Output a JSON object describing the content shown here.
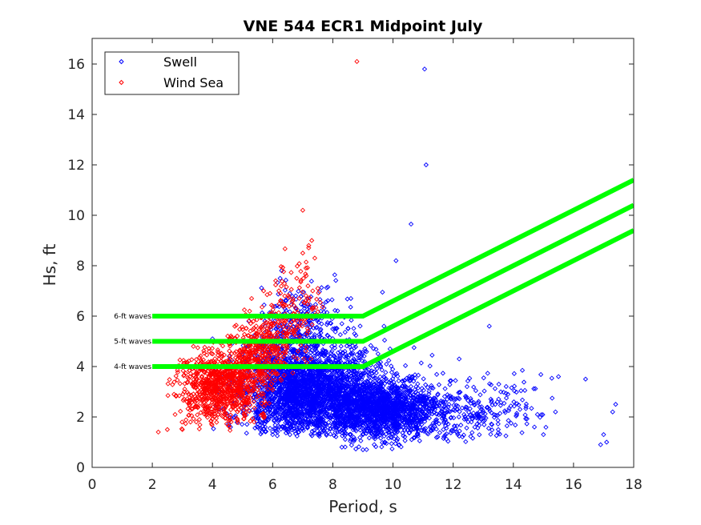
{
  "chart_data": {
    "type": "scatter",
    "title": "VNE 544 ECR1 Midpoint July",
    "xlabel": "Period, s",
    "ylabel": "Hs, ft",
    "xlim": [
      0,
      18
    ],
    "ylim": [
      0,
      17
    ],
    "xticks": [
      0,
      2,
      4,
      6,
      8,
      10,
      12,
      14,
      16,
      18
    ],
    "yticks": [
      0,
      2,
      4,
      6,
      8,
      10,
      12,
      14,
      16
    ],
    "grid": false,
    "legend": {
      "placement": "top-left",
      "entries": [
        "Swell",
        "Wind Sea"
      ]
    },
    "colors": {
      "swell": "#0000ff",
      "wind_sea": "#ff0000",
      "threshold": "#00ff00",
      "axis": "#262626"
    },
    "series": [
      {
        "name": "Swell",
        "marker": "diamond-open",
        "color": "#0000ff",
        "clusters": [
          {
            "n": 2600,
            "x_mean": 7.2,
            "x_sd": 1.1,
            "y_mean": 3.0,
            "y_sd": 0.9,
            "x_min": 4.0,
            "x_max": 10.0,
            "y_min": 1.2,
            "y_max": 6.5
          },
          {
            "n": 1400,
            "x_mean": 9.6,
            "x_sd": 0.9,
            "y_mean": 2.3,
            "y_sd": 0.6,
            "x_min": 8.0,
            "x_max": 11.5,
            "y_min": 0.7,
            "y_max": 4.5
          },
          {
            "n": 350,
            "x_mean": 12.0,
            "x_sd": 1.4,
            "y_mean": 2.2,
            "y_sd": 0.6,
            "x_min": 10.5,
            "x_max": 15.5,
            "y_min": 1.0,
            "y_max": 4.0
          },
          {
            "n": 250,
            "x_mean": 6.8,
            "x_sd": 0.8,
            "y_mean": 5.6,
            "y_sd": 0.9,
            "x_min": 5.5,
            "x_max": 9.0,
            "y_min": 4.5,
            "y_max": 8.0
          }
        ],
        "outliers": [
          [
            11.05,
            15.8
          ],
          [
            11.1,
            12.0
          ],
          [
            10.6,
            9.65
          ],
          [
            10.1,
            8.2
          ],
          [
            9.65,
            6.95
          ],
          [
            8.6,
            6.7
          ],
          [
            9.7,
            5.6
          ],
          [
            13.2,
            5.6
          ],
          [
            10.7,
            4.75
          ],
          [
            11.3,
            4.45
          ],
          [
            12.2,
            4.3
          ],
          [
            14.3,
            3.85
          ],
          [
            15.5,
            3.6
          ],
          [
            16.4,
            3.5
          ],
          [
            17.4,
            2.5
          ],
          [
            17.3,
            2.2
          ],
          [
            17.1,
            1.0
          ],
          [
            16.9,
            0.9
          ],
          [
            17.0,
            1.3
          ],
          [
            14.8,
            2.1
          ],
          [
            14.7,
            1.6
          ],
          [
            15.4,
            2.2
          ],
          [
            15.0,
            1.3
          ],
          [
            13.5,
            1.5
          ],
          [
            8.3,
            0.8
          ],
          [
            9.0,
            0.7
          ],
          [
            6.0,
            1.3
          ],
          [
            4.6,
            1.6
          ],
          [
            4.2,
            2.3
          ],
          [
            4.0,
            5.1
          ]
        ]
      },
      {
        "name": "Wind Sea",
        "marker": "diamond-open",
        "color": "#ff0000",
        "clusters": [
          {
            "n": 900,
            "x_mean": 4.3,
            "x_sd": 0.7,
            "y_mean": 3.2,
            "y_sd": 0.7,
            "x_min": 2.5,
            "x_max": 6.0,
            "y_min": 1.4,
            "y_max": 5.0
          },
          {
            "n": 350,
            "x_mean": 5.6,
            "x_sd": 0.6,
            "y_mean": 4.6,
            "y_sd": 0.7,
            "x_min": 4.5,
            "x_max": 6.5,
            "y_min": 3.0,
            "y_max": 6.5
          },
          {
            "n": 150,
            "x_mean": 6.6,
            "x_sd": 0.6,
            "y_mean": 6.0,
            "y_sd": 1.0,
            "x_min": 5.8,
            "x_max": 7.7,
            "y_min": 3.5,
            "y_max": 9.0
          }
        ],
        "outliers": [
          [
            8.8,
            16.1
          ],
          [
            7.0,
            10.2
          ],
          [
            7.3,
            9.0
          ],
          [
            7.2,
            8.8
          ],
          [
            7.0,
            8.5
          ],
          [
            7.4,
            8.3
          ],
          [
            7.5,
            7.1
          ],
          [
            6.8,
            7.5
          ],
          [
            8.0,
            6.0
          ],
          [
            2.2,
            1.4
          ],
          [
            2.5,
            1.5
          ],
          [
            3.0,
            1.5
          ],
          [
            6.1,
            7.4
          ],
          [
            6.4,
            6.8
          ],
          [
            5.7,
            7.0
          ],
          [
            5.3,
            6.7
          ]
        ]
      }
    ],
    "threshold_lines": [
      {
        "label": "6-ft waves",
        "points": [
          [
            2,
            6
          ],
          [
            9,
            6
          ],
          [
            18,
            11.4
          ]
        ]
      },
      {
        "label": "5-ft waves",
        "points": [
          [
            2,
            5
          ],
          [
            9,
            5
          ],
          [
            18,
            10.4
          ]
        ]
      },
      {
        "label": "4-ft waves",
        "points": [
          [
            2,
            4
          ],
          [
            9,
            4
          ],
          [
            18,
            9.4
          ]
        ]
      }
    ]
  }
}
